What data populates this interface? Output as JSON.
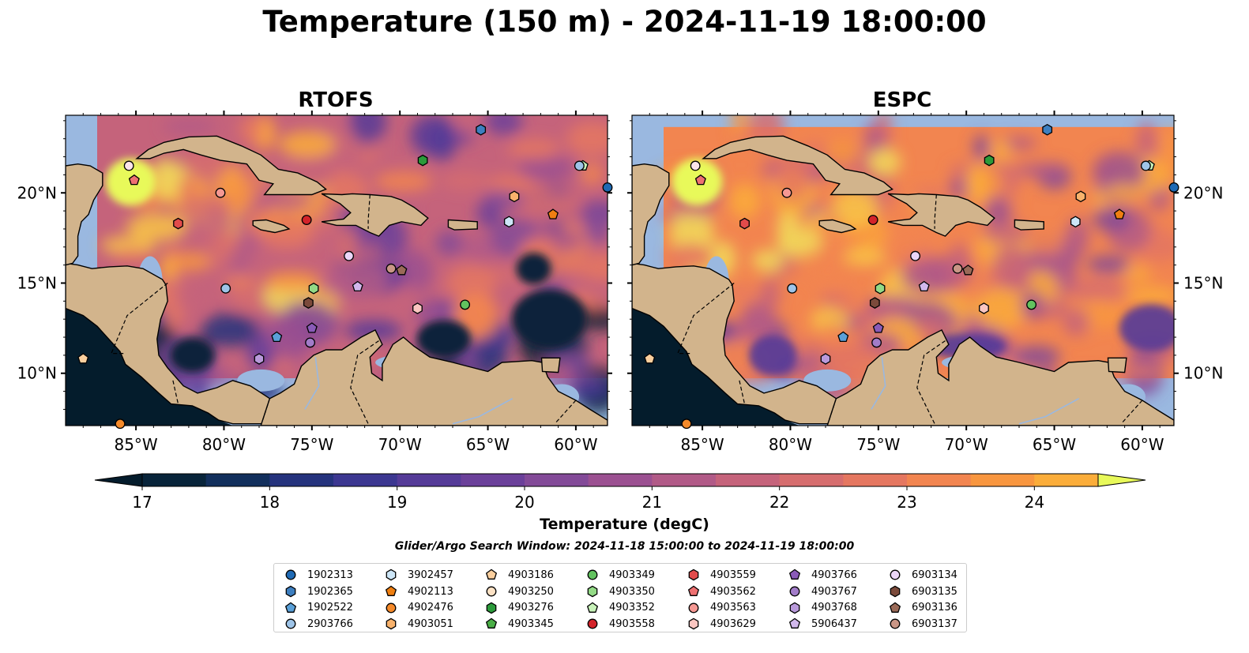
{
  "title": "Temperature (150 m) - 2024-11-19 18:00:00",
  "panels": [
    {
      "title": "RTOFS",
      "model": "rtofs"
    },
    {
      "title": "ESPC",
      "model": "espc"
    }
  ],
  "lon_ticks": [
    {
      "value": -85,
      "label": "85°W"
    },
    {
      "value": -80,
      "label": "80°W"
    },
    {
      "value": -75,
      "label": "75°W"
    },
    {
      "value": -70,
      "label": "70°W"
    },
    {
      "value": -65,
      "label": "65°W"
    },
    {
      "value": -60,
      "label": "60°W"
    }
  ],
  "lat_ticks": [
    {
      "value": 20,
      "label": "20°N"
    },
    {
      "value": 15,
      "label": "15°N"
    },
    {
      "value": 10,
      "label": "10°N"
    }
  ],
  "map_extent": {
    "lon_min": -89,
    "lon_max": -58.2,
    "lat_min": 7.1,
    "lat_max": 24.3
  },
  "colorbar": {
    "label": "Temperature (degC)",
    "vmin": 17,
    "vmax": 24.5,
    "step": 0.5,
    "ticks": [
      17,
      18,
      19,
      20,
      21,
      22,
      23,
      24
    ],
    "colors": [
      "#08243a",
      "#122f5c",
      "#25337d",
      "#3c3791",
      "#553b98",
      "#6b409a",
      "#834a98",
      "#9b5091",
      "#b15a87",
      "#c5637b",
      "#d66d6e",
      "#e57760",
      "#f28550",
      "#f8963f",
      "#fbad3a",
      "#f9c547",
      "#f1dc5a"
    ],
    "under_color": "#041c2c",
    "over_color": "#e8f95a"
  },
  "search_window": "Glider/Argo Search Window: 2024-11-18 15:00:00 to 2024-11-19 18:00:00",
  "floats": [
    {
      "id": "1902313",
      "marker": "circle",
      "color": "#1f6ab4",
      "lon": -58.2,
      "lat": 20.3
    },
    {
      "id": "1902365",
      "marker": "hexagon",
      "color": "#3d7fc0",
      "lon": null,
      "lat": null
    },
    {
      "id": "1902522",
      "marker": "pentagon",
      "color": "#5aa0d8",
      "lon": -77.0,
      "lat": 12.0
    },
    {
      "id": "2903766",
      "marker": "circle",
      "color": "#9ec4e8",
      "lon": -79.9,
      "lat": 14.7
    },
    {
      "id": "3902457",
      "marker": "hexagon",
      "color": "#cde6f7",
      "lon": -63.8,
      "lat": 18.4
    },
    {
      "id": "4902113",
      "marker": "pentagon",
      "color": "#ef7f11",
      "lon": -61.3,
      "lat": 18.8
    },
    {
      "id": "4902476",
      "marker": "circle",
      "color": "#f58a2a",
      "lon": -85.9,
      "lat": 7.2
    },
    {
      "id": "4903051",
      "marker": "hexagon",
      "color": "#f8b26c",
      "lon": -63.5,
      "lat": 19.8
    },
    {
      "id": "4903186",
      "marker": "pentagon",
      "color": "#fbcf9e",
      "lon": -88.0,
      "lat": 10.8
    },
    {
      "id": "4903250",
      "marker": "circle",
      "color": "#fde2c5",
      "lon": null,
      "lat": null
    },
    {
      "id": "4903276",
      "marker": "hexagon",
      "color": "#2b9a3a",
      "lon": -68.7,
      "lat": 21.8
    },
    {
      "id": "4903345",
      "marker": "pentagon",
      "color": "#4aae46",
      "lon": null,
      "lat": null
    },
    {
      "id": "4903349",
      "marker": "circle",
      "color": "#62c25f",
      "lon": -66.3,
      "lat": 13.8
    },
    {
      "id": "4903350",
      "marker": "hexagon",
      "color": "#93da86",
      "lon": -74.9,
      "lat": 14.7
    },
    {
      "id": "4903352",
      "marker": "pentagon",
      "color": "#c8f2b9",
      "lon": -59.6,
      "lat": 21.5
    },
    {
      "id": "4903558",
      "marker": "circle",
      "color": "#d3232a",
      "lon": -75.3,
      "lat": 18.5
    },
    {
      "id": "4903559",
      "marker": "hexagon",
      "color": "#e24b4b",
      "lon": -82.6,
      "lat": 18.3
    },
    {
      "id": "4903562",
      "marker": "pentagon",
      "color": "#ee7071",
      "lon": -85.1,
      "lat": 20.7
    },
    {
      "id": "4903563",
      "marker": "circle",
      "color": "#f59893",
      "lon": -80.2,
      "lat": 20.0
    },
    {
      "id": "4903629",
      "marker": "hexagon",
      "color": "#fbc6c1",
      "lon": -69.0,
      "lat": 13.6
    },
    {
      "id": "4903766",
      "marker": "pentagon",
      "color": "#8a5bb8",
      "lon": -75.0,
      "lat": 12.5
    },
    {
      "id": "4903767",
      "marker": "circle",
      "color": "#a27cc9",
      "lon": -75.1,
      "lat": 11.7
    },
    {
      "id": "4903768",
      "marker": "hexagon",
      "color": "#b99adb",
      "lon": -78.0,
      "lat": 10.8
    },
    {
      "id": "5906437",
      "marker": "pentagon",
      "color": "#d1b8ec",
      "lon": -72.4,
      "lat": 14.8
    },
    {
      "id": "6903134",
      "marker": "circle",
      "color": "#ebd6f8",
      "lon": -72.9,
      "lat": 16.5
    },
    {
      "id": "6903135",
      "marker": "hexagon",
      "color": "#7b4a3b",
      "lon": -75.2,
      "lat": 13.9
    },
    {
      "id": "6903136",
      "marker": "pentagon",
      "color": "#9a6a58",
      "lon": -69.9,
      "lat": 15.7
    },
    {
      "id": "6903137",
      "marker": "circle",
      "color": "#c99686",
      "lon": -70.5,
      "lat": 15.8
    }
  ],
  "extra_markers": [
    {
      "marker": "circle",
      "color": "#fbe4ea",
      "lon": -85.4,
      "lat": 21.5
    },
    {
      "marker": "hexagon",
      "color": "#3d7fc0",
      "lon": -65.4,
      "lat": 23.5
    },
    {
      "marker": "circle",
      "color": "#9ec4e8",
      "lon": -59.8,
      "lat": 21.5
    }
  ]
}
